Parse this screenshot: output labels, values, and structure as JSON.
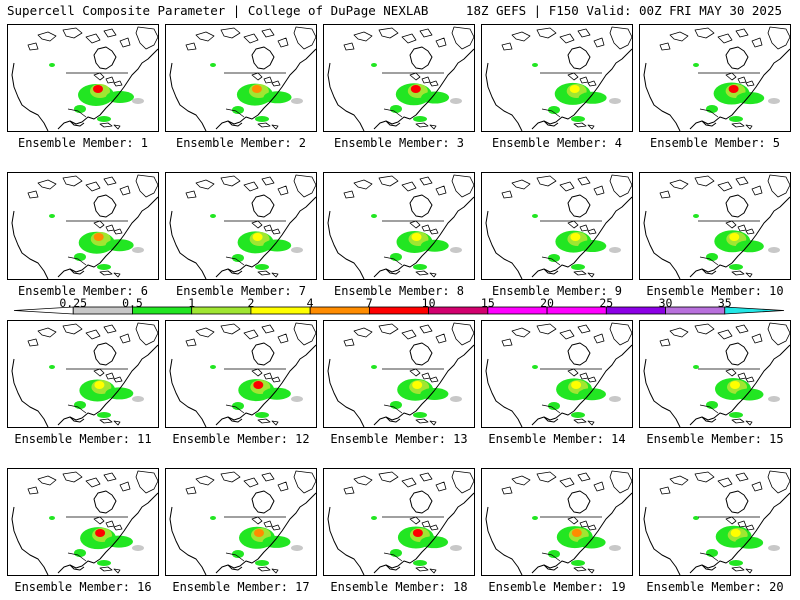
{
  "header": {
    "left": "Supercell Composite Parameter | College of DuPage NEXLAB",
    "right": "18Z GEFS | F150 Valid: 00Z FRI MAY 30 2025"
  },
  "legend": {
    "labels": [
      "0.25",
      "0.5",
      "1",
      "2",
      "4",
      "7",
      "10",
      "15",
      "20",
      "25",
      "30",
      "35"
    ],
    "colors": [
      "#ffffff",
      "#c8c8c8",
      "#22e622",
      "#a0e632",
      "#ffff00",
      "#ff8c00",
      "#ff0000",
      "#d2006e",
      "#ff00ff",
      "#ff00ff",
      "#8c00e6",
      "#b870dc",
      "#22e6e6"
    ]
  },
  "members": [
    {
      "label": "Ensemble Member: 1"
    },
    {
      "label": "Ensemble Member: 2"
    },
    {
      "label": "Ensemble Member: 3"
    },
    {
      "label": "Ensemble Member: 4"
    },
    {
      "label": "Ensemble Member: 5"
    },
    {
      "label": "Ensemble Member: 6"
    },
    {
      "label": "Ensemble Member: 7"
    },
    {
      "label": "Ensemble Member: 8"
    },
    {
      "label": "Ensemble Member: 9"
    },
    {
      "label": "Ensemble Member: 10"
    },
    {
      "label": "Ensemble Member: 11"
    },
    {
      "label": "Ensemble Member: 12"
    },
    {
      "label": "Ensemble Member: 13"
    },
    {
      "label": "Ensemble Member: 14"
    },
    {
      "label": "Ensemble Member: 15"
    },
    {
      "label": "Ensemble Member: 16"
    },
    {
      "label": "Ensemble Member: 17"
    },
    {
      "label": "Ensemble Member: 18"
    },
    {
      "label": "Ensemble Member: 19"
    },
    {
      "label": "Ensemble Member: 20"
    }
  ]
}
